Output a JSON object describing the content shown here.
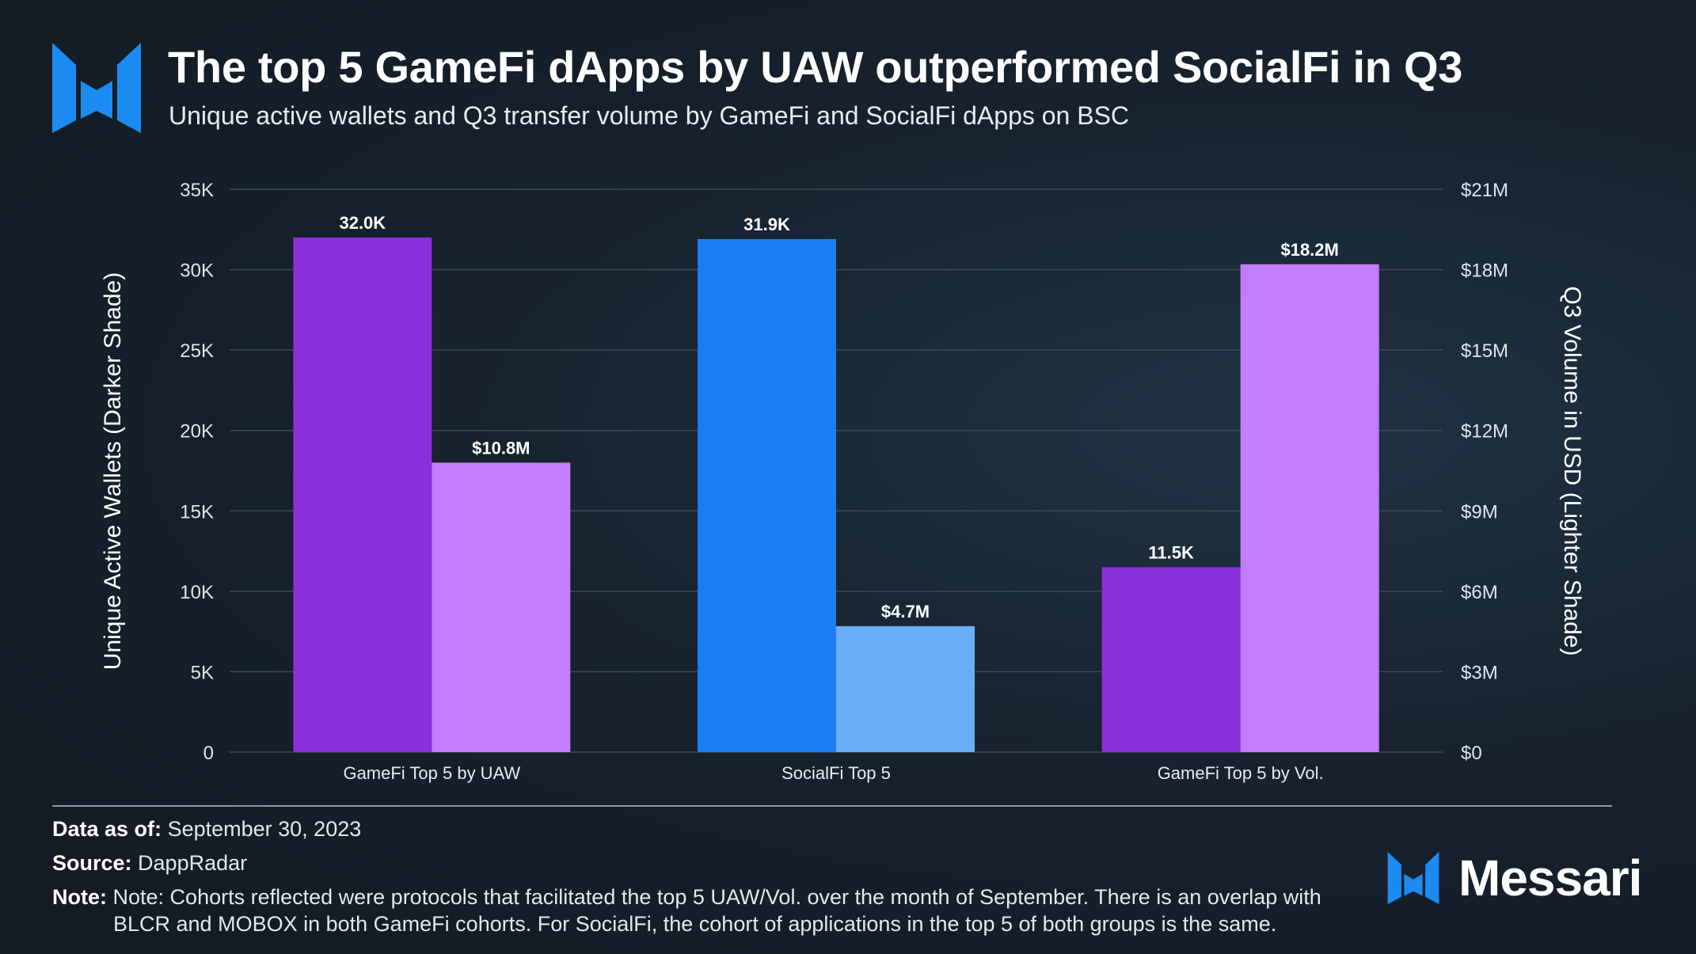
{
  "header": {
    "title": "The top 5 GameFi dApps by UAW outperformed SocialFi in Q3",
    "subtitle": "Unique active wallets and Q3 transfer volume by GameFi and SocialFi dApps on BSC",
    "logo_icon": "messari-m-icon"
  },
  "chart_data": {
    "type": "bar",
    "categories": [
      "GameFi Top 5 by UAW",
      "SocialFi Top 5",
      "GameFi Top 5 by Vol."
    ],
    "series": [
      {
        "name": "Unique Active Wallets",
        "axis": "left",
        "values": [
          32000,
          31900,
          11500
        ],
        "labels": [
          "32.0K",
          "31.9K",
          "11.5K"
        ],
        "colors": [
          "#8a30dc",
          "#1b7ef0",
          "#8a30dc"
        ]
      },
      {
        "name": "Q3 Volume in USD",
        "axis": "right",
        "values": [
          10.8,
          4.7,
          18.2
        ],
        "labels": [
          "$10.8M",
          "$4.7M",
          "$18.2M"
        ],
        "colors": [
          "#c17dfb",
          "#6aaef7",
          "#c17dfb"
        ]
      }
    ],
    "ylabel_left": "Unique Active Wallets (Darker Shade)",
    "ylabel_right": "Q3 Volume in USD (Lighter Shade)",
    "ylim_left": [
      0,
      35000
    ],
    "ylim_right": [
      0,
      21
    ],
    "yticks_left": [
      "0",
      "5K",
      "10K",
      "15K",
      "20K",
      "25K",
      "30K",
      "35K"
    ],
    "yticks_right": [
      "$0",
      "$3M",
      "$6M",
      "$9M",
      "$12M",
      "$15M",
      "$18M",
      "$21M"
    ],
    "grid": true
  },
  "footer": {
    "date_label": "Data as of:",
    "date_value": "September 30, 2023",
    "source_label": "Source:",
    "source_value": "DappRadar",
    "note_label": "Note:",
    "note_line1": "Note: Cohorts reflected were protocols that facilitated the top 5 UAW/Vol. over the month of September. There is an overlap with",
    "note_line2": "BLCR and MOBOX in both GameFi cohorts. For SocialFi, the cohort of applications in the top 5 of both groups is the same.",
    "brand_name": "Messari",
    "brand_icon": "messari-m-icon"
  }
}
